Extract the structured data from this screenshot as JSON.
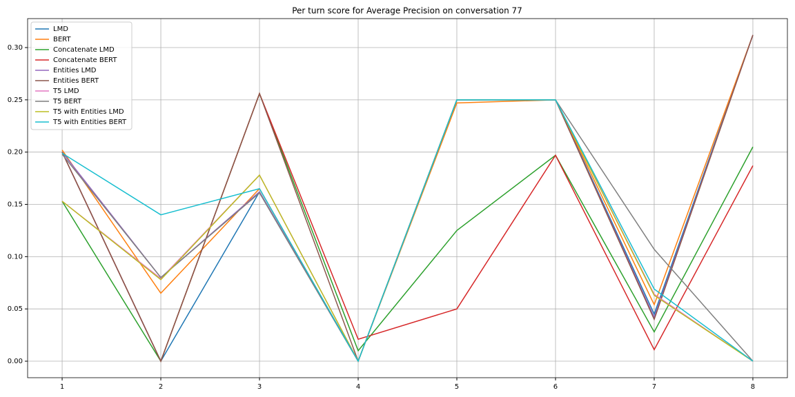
{
  "chart_data": {
    "type": "line",
    "title": "Per turn score for Average Precision on conversation 77",
    "x": [
      1,
      2,
      3,
      4,
      5,
      6,
      7,
      8
    ],
    "series": [
      {
        "name": "LMD",
        "color": "#1f77b4",
        "values": [
          0.2,
          0.0,
          0.162,
          0.0,
          0.25,
          0.25,
          0.045,
          0.312
        ]
      },
      {
        "name": "BERT",
        "color": "#ff7f0e",
        "values": [
          0.202,
          0.065,
          0.165,
          0.0,
          0.247,
          0.25,
          0.054,
          0.312
        ]
      },
      {
        "name": "Concatenate LMD",
        "color": "#2ca02c",
        "values": [
          0.153,
          0.0,
          0.256,
          0.01,
          0.125,
          0.197,
          0.028,
          0.205
        ]
      },
      {
        "name": "Concatenate BERT",
        "color": "#d62728",
        "values": [
          0.2,
          0.0,
          0.256,
          0.021,
          0.05,
          0.197,
          0.011,
          0.187
        ]
      },
      {
        "name": "Entities LMD",
        "color": "#9467bd",
        "values": [
          0.2,
          0.08,
          0.162,
          0.0,
          0.25,
          0.25,
          0.042,
          0.312
        ]
      },
      {
        "name": "Entities BERT",
        "color": "#8c564b",
        "values": [
          0.2,
          0.0,
          0.256,
          0.0,
          0.25,
          0.25,
          0.04,
          0.312
        ]
      },
      {
        "name": "T5 LMD",
        "color": "#e377c2",
        "values": [
          0.153,
          0.079,
          0.178,
          0.0,
          0.25,
          0.25,
          0.064,
          0.0
        ]
      },
      {
        "name": "T5 BERT",
        "color": "#7f7f7f",
        "values": [
          0.198,
          0.08,
          0.161,
          0.0,
          0.25,
          0.25,
          0.107,
          0.0
        ]
      },
      {
        "name": "T5 with Entities LMD",
        "color": "#bcbd22",
        "values": [
          0.153,
          0.078,
          0.178,
          0.0,
          0.25,
          0.25,
          0.063,
          0.0
        ]
      },
      {
        "name": "T5 with Entities BERT",
        "color": "#17becf",
        "values": [
          0.199,
          0.14,
          0.165,
          0.0,
          0.25,
          0.25,
          0.069,
          0.0
        ]
      }
    ],
    "xlim": [
      0.65,
      8.35
    ],
    "xticks": [
      1,
      2,
      3,
      4,
      5,
      6,
      7,
      8
    ],
    "ylim": [
      -0.0158,
      0.3277
    ],
    "yticks": [
      {
        "value": 0,
        "label": "0.00"
      },
      {
        "value": 0.05,
        "label": "0.05"
      },
      {
        "value": 0.1,
        "label": "0.10"
      },
      {
        "value": 0.15,
        "label": "0.15"
      },
      {
        "value": 0.2,
        "label": "0.20"
      },
      {
        "value": 0.25,
        "label": "0.25"
      },
      {
        "value": 0.3,
        "label": "0.30"
      }
    ],
    "grid": true,
    "legend": "upper left"
  }
}
